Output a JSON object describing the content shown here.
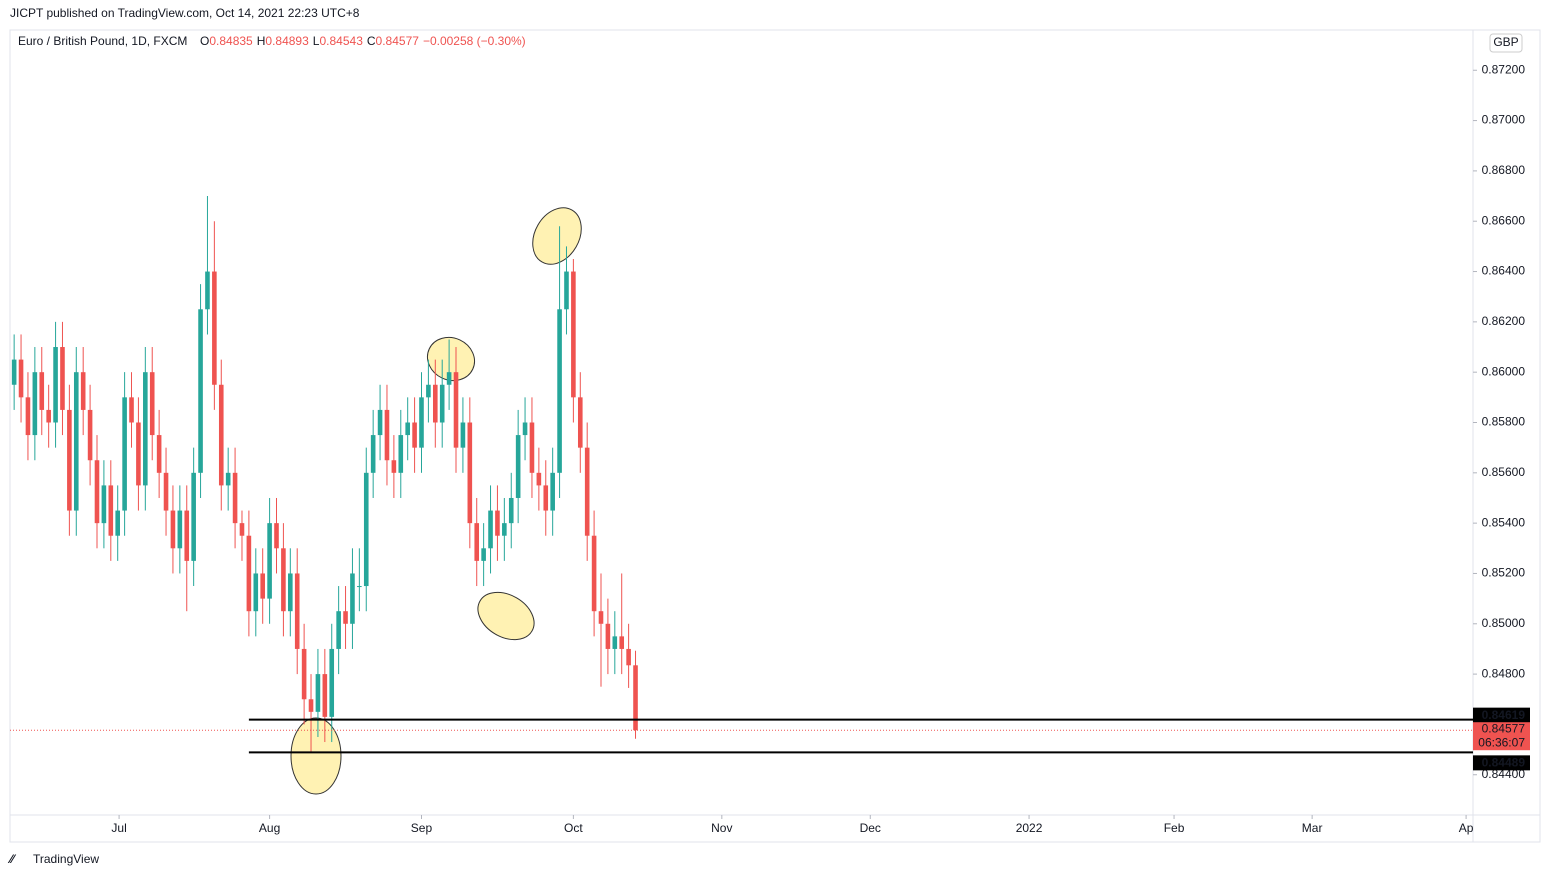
{
  "header": "JICPT published on TradingView.com, Oct 14, 2021 22:23 UTC+8",
  "footer": "TradingView",
  "chart_data": {
    "type": "candlestick",
    "title": "Euro / British Pound, 1D, FXCM",
    "ohlc": {
      "names": [
        "O",
        "H",
        "L",
        "C"
      ],
      "values": [
        0.84835,
        0.84893,
        0.84543,
        0.84577
      ],
      "change": "−0.00258 (−0.30%)"
    },
    "currency": "GBP",
    "up_color": "#26a69a",
    "down_color": "#ef5350",
    "open": [
      0.8595,
      0.8605,
      0.859,
      0.8575,
      0.86,
      0.8585,
      0.858,
      0.861,
      0.8585,
      0.8545,
      0.86,
      0.8585,
      0.8565,
      0.854,
      0.8555,
      0.8535,
      0.8545,
      0.859,
      0.858,
      0.8555,
      0.86,
      0.8575,
      0.856,
      0.8545,
      0.853,
      0.8545,
      0.8525,
      0.856,
      0.8625,
      0.864,
      0.8595,
      0.8555,
      0.856,
      0.854,
      0.8535,
      0.8505,
      0.852,
      0.851,
      0.854,
      0.853,
      0.8505,
      0.852,
      0.849,
      0.847,
      0.8465,
      0.848,
      0.8463,
      0.849,
      0.8505,
      0.85,
      0.8515,
      0.8515,
      0.856,
      0.8575,
      0.8585,
      0.8565,
      0.856,
      0.8575,
      0.858,
      0.857,
      0.859,
      0.8595,
      0.858,
      0.8595,
      0.86,
      0.857,
      0.858,
      0.854,
      0.8525,
      0.853,
      0.8545,
      0.8535,
      0.854,
      0.855,
      0.8575,
      0.858,
      0.856,
      0.8555,
      0.8545,
      0.856,
      0.8625,
      0.864,
      0.859,
      0.857,
      0.8535,
      0.8505,
      0.85,
      0.849,
      0.8495,
      0.849,
      0.84835
    ],
    "high": [
      0.8615,
      0.8615,
      0.86,
      0.861,
      0.861,
      0.8595,
      0.862,
      0.862,
      0.8595,
      0.861,
      0.861,
      0.8595,
      0.8575,
      0.8565,
      0.8565,
      0.8555,
      0.86,
      0.86,
      0.859,
      0.861,
      0.861,
      0.8585,
      0.857,
      0.8555,
      0.8555,
      0.8555,
      0.857,
      0.8635,
      0.867,
      0.866,
      0.8605,
      0.857,
      0.857,
      0.8545,
      0.8545,
      0.853,
      0.853,
      0.855,
      0.855,
      0.854,
      0.853,
      0.853,
      0.85,
      0.848,
      0.849,
      0.849,
      0.85,
      0.8515,
      0.8515,
      0.853,
      0.853,
      0.857,
      0.8585,
      0.8595,
      0.8595,
      0.8575,
      0.8585,
      0.859,
      0.859,
      0.86,
      0.8605,
      0.8605,
      0.8605,
      0.8613,
      0.861,
      0.859,
      0.859,
      0.855,
      0.854,
      0.8555,
      0.8555,
      0.855,
      0.856,
      0.8585,
      0.859,
      0.859,
      0.857,
      0.8565,
      0.857,
      0.8658,
      0.865,
      0.8645,
      0.86,
      0.858,
      0.8545,
      0.852,
      0.851,
      0.8505,
      0.852,
      0.85,
      0.84893
    ],
    "low": [
      0.8585,
      0.858,
      0.8565,
      0.8565,
      0.8575,
      0.857,
      0.857,
      0.8575,
      0.8535,
      0.8535,
      0.8575,
      0.8555,
      0.853,
      0.853,
      0.8525,
      0.8525,
      0.8535,
      0.857,
      0.8545,
      0.8545,
      0.8565,
      0.855,
      0.8535,
      0.852,
      0.852,
      0.8505,
      0.8515,
      0.855,
      0.8615,
      0.8585,
      0.8545,
      0.8545,
      0.853,
      0.8525,
      0.8495,
      0.8495,
      0.85,
      0.85,
      0.852,
      0.8495,
      0.8495,
      0.848,
      0.846,
      0.8449,
      0.8455,
      0.8453,
      0.8453,
      0.848,
      0.849,
      0.849,
      0.8505,
      0.8505,
      0.855,
      0.8565,
      0.8555,
      0.855,
      0.855,
      0.8565,
      0.856,
      0.856,
      0.858,
      0.857,
      0.857,
      0.8585,
      0.856,
      0.856,
      0.853,
      0.8515,
      0.8515,
      0.852,
      0.8525,
      0.8525,
      0.853,
      0.854,
      0.8565,
      0.855,
      0.8545,
      0.8535,
      0.8535,
      0.855,
      0.8615,
      0.858,
      0.856,
      0.8525,
      0.8495,
      0.8475,
      0.848,
      0.848,
      0.848,
      0.84745,
      0.84543
    ],
    "close": [
      0.8605,
      0.859,
      0.8575,
      0.86,
      0.8585,
      0.858,
      0.861,
      0.8585,
      0.8545,
      0.86,
      0.8585,
      0.8565,
      0.854,
      0.8555,
      0.8535,
      0.8545,
      0.859,
      0.858,
      0.8555,
      0.86,
      0.8575,
      0.856,
      0.8545,
      0.853,
      0.8545,
      0.8525,
      0.856,
      0.8625,
      0.864,
      0.8595,
      0.8555,
      0.856,
      0.854,
      0.8535,
      0.8505,
      0.852,
      0.851,
      0.854,
      0.853,
      0.8505,
      0.852,
      0.849,
      0.847,
      0.8465,
      0.848,
      0.8463,
      0.849,
      0.8505,
      0.85,
      0.852,
      0.8515,
      0.856,
      0.8575,
      0.8585,
      0.8565,
      0.856,
      0.8575,
      0.858,
      0.857,
      0.859,
      0.8595,
      0.858,
      0.8595,
      0.86,
      0.857,
      0.858,
      0.854,
      0.8525,
      0.853,
      0.8545,
      0.8535,
      0.854,
      0.855,
      0.8575,
      0.858,
      0.856,
      0.8555,
      0.8545,
      0.856,
      0.8625,
      0.864,
      0.859,
      0.857,
      0.8535,
      0.8505,
      0.85,
      0.849,
      0.8495,
      0.849,
      0.84835,
      0.84577
    ],
    "levels": [
      0.84619,
      0.84489
    ],
    "last_price": 0.84577,
    "countdown": "06:36:07",
    "xlim": [
      -0.6,
      211.3
    ],
    "xticks": [
      {
        "value": 15.2,
        "label": "Jul"
      },
      {
        "value": 37,
        "label": "Aug"
      },
      {
        "value": 59,
        "label": "Sep"
      },
      {
        "value": 81,
        "label": "Oct"
      },
      {
        "value": 102.5,
        "label": "Nov"
      },
      {
        "value": 124,
        "label": "Dec"
      },
      {
        "value": 147,
        "label": "2022"
      },
      {
        "value": 168,
        "label": "Feb"
      },
      {
        "value": 188,
        "label": "Mar"
      },
      {
        "value": 210.3,
        "label": "Ap"
      }
    ],
    "ylim": [
      0.8424,
      0.8736
    ],
    "yticks": [
      {
        "value": 0.844,
        "label": "0.84400"
      },
      {
        "value": 0.846,
        "label": "0.84600"
      },
      {
        "value": 0.848,
        "label": "0.84800"
      },
      {
        "value": 0.85,
        "label": "0.85000"
      },
      {
        "value": 0.852,
        "label": "0.85200"
      },
      {
        "value": 0.854,
        "label": "0.85400"
      },
      {
        "value": 0.856,
        "label": "0.85600"
      },
      {
        "value": 0.858,
        "label": "0.85800"
      },
      {
        "value": 0.86,
        "label": "0.86000"
      },
      {
        "value": 0.862,
        "label": "0.86200"
      },
      {
        "value": 0.864,
        "label": "0.86400"
      },
      {
        "value": 0.866,
        "label": "0.86600"
      },
      {
        "value": 0.868,
        "label": "0.86800"
      },
      {
        "value": 0.87,
        "label": "0.87000"
      },
      {
        "value": 0.872,
        "label": "0.87200"
      }
    ]
  }
}
